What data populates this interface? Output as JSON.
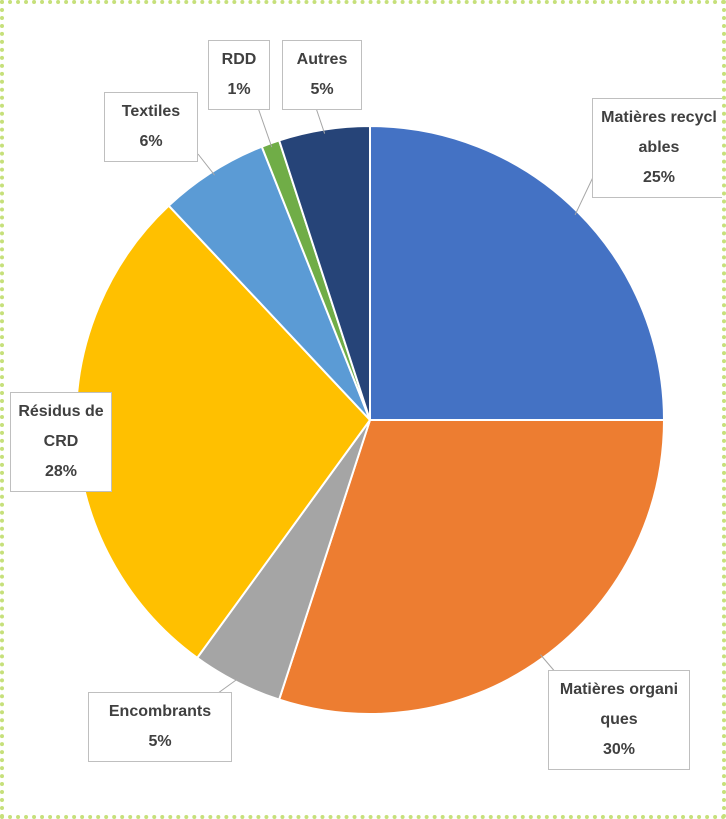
{
  "chart_data": {
    "type": "pie",
    "categories": [
      "Matières recyclables",
      "Matières organiques",
      "Encombrants",
      "Résidus de CRD",
      "Textiles",
      "RDD",
      "Autres"
    ],
    "values": [
      25,
      30,
      5,
      28,
      6,
      1,
      5
    ],
    "value_labels": [
      "25%",
      "30%",
      "5%",
      "28%",
      "6%",
      "1%",
      "5%"
    ],
    "colors": [
      "#4472c4",
      "#ed7d31",
      "#a5a5a5",
      "#ffc000",
      "#5b9bd5",
      "#70ad47",
      "#264478"
    ]
  }
}
